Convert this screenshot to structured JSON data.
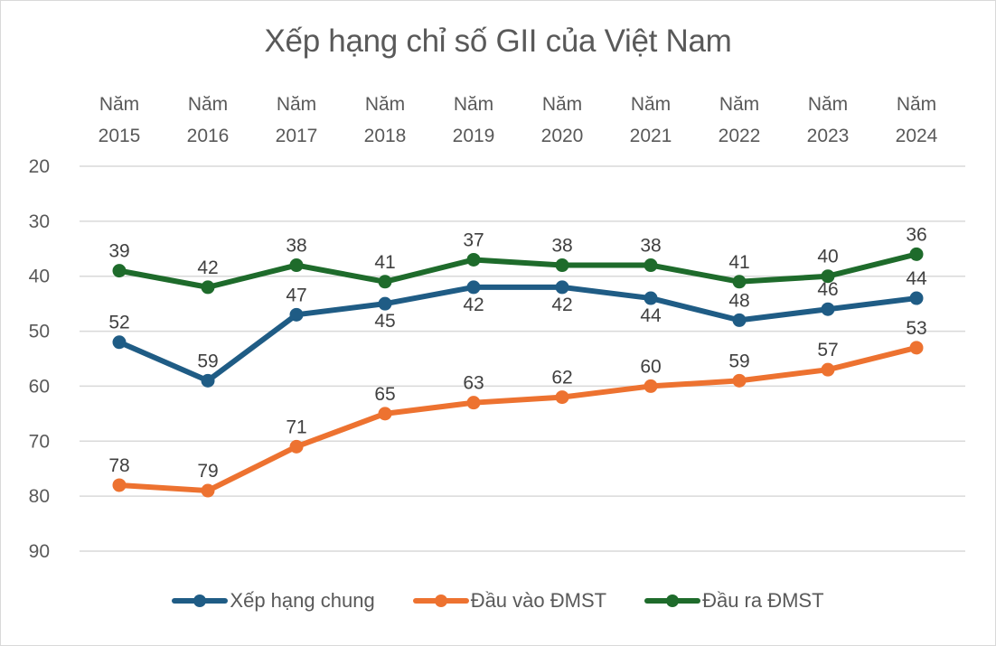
{
  "chart_data": {
    "type": "line",
    "title": "Xếp hạng chỉ số GII của Việt Nam",
    "categories": [
      [
        "Năm",
        "2015"
      ],
      [
        "Năm",
        "2016"
      ],
      [
        "Năm",
        "2017"
      ],
      [
        "Năm",
        "2018"
      ],
      [
        "Năm",
        "2019"
      ],
      [
        "Năm",
        "2020"
      ],
      [
        "Năm",
        "2021"
      ],
      [
        "Năm",
        "2022"
      ],
      [
        "Năm",
        "2023"
      ],
      [
        "Năm",
        "2024"
      ]
    ],
    "xaxis_position": "top",
    "ylim": [
      20,
      90
    ],
    "y_reversed": true,
    "yticks": [
      "20",
      "30",
      "40",
      "50",
      "60",
      "70",
      "80",
      "90"
    ],
    "grid": true,
    "legend_position": "bottom",
    "series": [
      {
        "name": "Xếp hạng chung",
        "color": "#1f5c85",
        "values": [
          52,
          59,
          47,
          45,
          42,
          42,
          44,
          48,
          46,
          44
        ],
        "label_side": [
          "above",
          "above",
          "above",
          "below",
          "below",
          "below",
          "below",
          "above",
          "above",
          "above"
        ]
      },
      {
        "name": "Đầu vào ĐMST",
        "color": "#ed7230",
        "values": [
          78,
          79,
          71,
          65,
          63,
          62,
          60,
          59,
          57,
          53
        ],
        "label_side": [
          "above",
          "above",
          "above",
          "above",
          "above",
          "above",
          "above",
          "above",
          "above",
          "above"
        ]
      },
      {
        "name": "Đầu ra ĐMST",
        "color": "#1e6b2b",
        "values": [
          39,
          42,
          38,
          41,
          37,
          38,
          38,
          41,
          40,
          36
        ],
        "label_side": [
          "above",
          "above",
          "above",
          "above",
          "above",
          "above",
          "above",
          "above",
          "above",
          "above"
        ]
      }
    ]
  }
}
